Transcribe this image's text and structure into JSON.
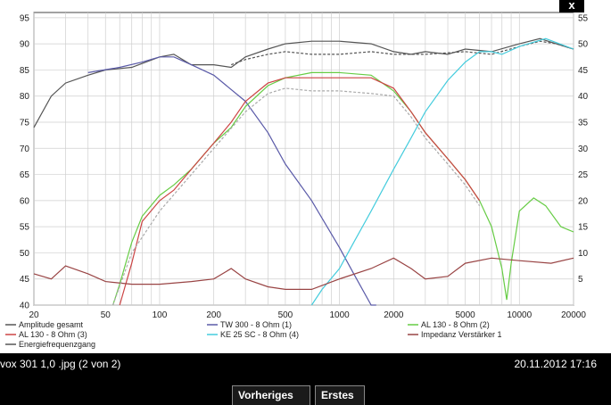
{
  "viewer": {
    "close_label": "x",
    "caption_title": "vox 301 1,0 .jpg (2 von 2)",
    "caption_date": "20.11.2012 17:16",
    "prev_label": "Vorheriges",
    "first_label": "Erstes"
  },
  "chart_data": {
    "type": "line",
    "title": "",
    "xlabel": "",
    "ylabel": "",
    "x_scale": "log",
    "xlim": [
      20,
      20000
    ],
    "ylim": [
      40,
      96
    ],
    "y2lim": [
      0,
      56
    ],
    "grid": true,
    "legend_placement": "bottom",
    "x_ticks": [
      20,
      50,
      100,
      200,
      500,
      1000,
      2000,
      5000,
      10000,
      20000
    ],
    "x_tick_labels": [
      "20",
      "50",
      "100",
      "200",
      "500",
      "1000",
      "2000",
      "5000",
      "10000",
      "20000"
    ],
    "y_ticks": [
      40,
      45,
      50,
      55,
      60,
      65,
      70,
      75,
      80,
      85,
      90,
      95
    ],
    "y2_ticks": [
      5,
      10,
      15,
      20,
      25,
      30,
      35,
      40,
      45,
      50,
      55
    ],
    "series": [
      {
        "name": "Amplitude gesamt",
        "color": "#555555",
        "dashed": false,
        "x": [
          20,
          25,
          30,
          40,
          50,
          70,
          100,
          120,
          150,
          200,
          250,
          300,
          400,
          500,
          700,
          1000,
          1500,
          2000,
          2500,
          3000,
          4000,
          5000,
          7000,
          10000,
          13000,
          16000,
          20000
        ],
        "y": [
          74,
          80,
          82.5,
          84,
          85,
          85.5,
          87.5,
          88,
          86,
          86,
          85.5,
          87.5,
          89,
          90,
          90.5,
          90.5,
          90,
          88.5,
          88,
          88.5,
          88,
          89,
          88.5,
          90,
          91,
          90,
          89
        ]
      },
      {
        "name": "Energiefrequenzgang",
        "color": "#555555",
        "dashed": true,
        "x": [
          250,
          300,
          400,
          500,
          700,
          1000,
          1500,
          2000,
          3000,
          5000,
          7000,
          10000,
          13000,
          16000,
          20000
        ],
        "y": [
          86,
          87,
          88,
          88.5,
          88,
          88,
          88.5,
          88,
          88,
          88.5,
          88,
          89.5,
          90.5,
          90,
          89
        ]
      },
      {
        "name": "TW 300 - 8 Ohm (1)",
        "color": "#5a5aa8",
        "dashed": false,
        "x": [
          40,
          60,
          80,
          100,
          120,
          150,
          200,
          300,
          400,
          500,
          700,
          1000,
          1200,
          1500,
          1600
        ],
        "y": [
          84.5,
          85.5,
          86.5,
          87.5,
          87.5,
          86,
          84,
          79,
          73,
          67,
          60,
          51,
          46,
          40,
          40
        ]
      },
      {
        "name": "AL 130 - 8 Ohm (2)",
        "color": "#66cc44",
        "dashed": false,
        "x": [
          55,
          60,
          70,
          80,
          100,
          120,
          150,
          200,
          250,
          300,
          400,
          500,
          700,
          1000,
          1500,
          2000,
          2500,
          3000,
          4000,
          5000,
          6000,
          7000,
          8000,
          8500,
          9000,
          10000,
          12000,
          14000,
          17000,
          20000
        ],
        "y": [
          40,
          44,
          52,
          57,
          61,
          63,
          66,
          71,
          74,
          78,
          82,
          83.5,
          84.5,
          84.5,
          84,
          81,
          77,
          73,
          68,
          64,
          60,
          55,
          47,
          41,
          48,
          58,
          60.5,
          59,
          55,
          54
        ]
      },
      {
        "name": "AL 130 - 8 Ohm (3)",
        "color": "#cc4444",
        "dashed": false,
        "x": [
          60,
          70,
          80,
          100,
          120,
          150,
          200,
          250,
          300,
          400,
          500,
          700,
          1000,
          1500,
          2000,
          2500,
          3000,
          4000,
          5000,
          6000
        ],
        "y": [
          40,
          48,
          56,
          60,
          62,
          66,
          71,
          75,
          79,
          82.5,
          83.5,
          83.5,
          83.5,
          83.5,
          81.5,
          77,
          73,
          68,
          64,
          60
        ]
      },
      {
        "name": "KE 25 SC - 8 Ohm (4)",
        "color": "#44ccdd",
        "dashed": false,
        "x": [
          700,
          800,
          1000,
          1200,
          1500,
          2000,
          2500,
          3000,
          4000,
          5000,
          6000,
          7000,
          8000,
          10000,
          14000,
          20000
        ],
        "y": [
          40,
          43,
          47,
          52,
          58,
          66,
          72,
          77,
          83,
          86.5,
          88.5,
          88.5,
          88,
          89.5,
          91,
          89
        ]
      },
      {
        "name": "Impedanz Verstärker 1",
        "color": "#994444",
        "dashed": false,
        "axis": "right",
        "x": [
          20,
          25,
          30,
          40,
          50,
          70,
          100,
          150,
          200,
          250,
          300,
          400,
          500,
          700,
          1000,
          1500,
          2000,
          2500,
          3000,
          4000,
          5000,
          7000,
          10000,
          15000,
          20000
        ],
        "y": [
          6,
          5,
          7.5,
          6,
          4.5,
          4,
          4,
          4.5,
          5,
          7,
          5,
          3.5,
          3,
          3,
          5,
          7,
          9,
          7,
          5,
          5.5,
          8,
          9,
          8.5,
          8,
          9
        ]
      },
      {
        "name": "",
        "color": "#aaaaaa",
        "dashed": true,
        "x": [
          55,
          70,
          100,
          150,
          200,
          300,
          400,
          500,
          700,
          1000,
          1500,
          2000,
          2500,
          3000,
          4000,
          5000,
          6000
        ],
        "y": [
          40,
          50,
          58,
          65,
          70,
          77,
          80.5,
          81.5,
          81,
          81,
          80.5,
          80,
          76,
          72,
          67,
          63,
          59
        ]
      }
    ],
    "legend": [
      {
        "label": "Amplitude gesamt",
        "color": "#555555"
      },
      {
        "label": "TW 300 - 8 Ohm (1)",
        "color": "#5a5aa8"
      },
      {
        "label": "AL 130 - 8 Ohm (2)",
        "color": "#66cc44"
      },
      {
        "label": "AL 130 - 8 Ohm (3)",
        "color": "#cc4444"
      },
      {
        "label": "KE 25 SC - 8 Ohm     (4)",
        "color": "#44ccdd"
      },
      {
        "label": "Impedanz Verstärker 1",
        "color": "#994444"
      },
      {
        "label": "Energiefrequenzgang",
        "color": "#555555"
      }
    ]
  }
}
